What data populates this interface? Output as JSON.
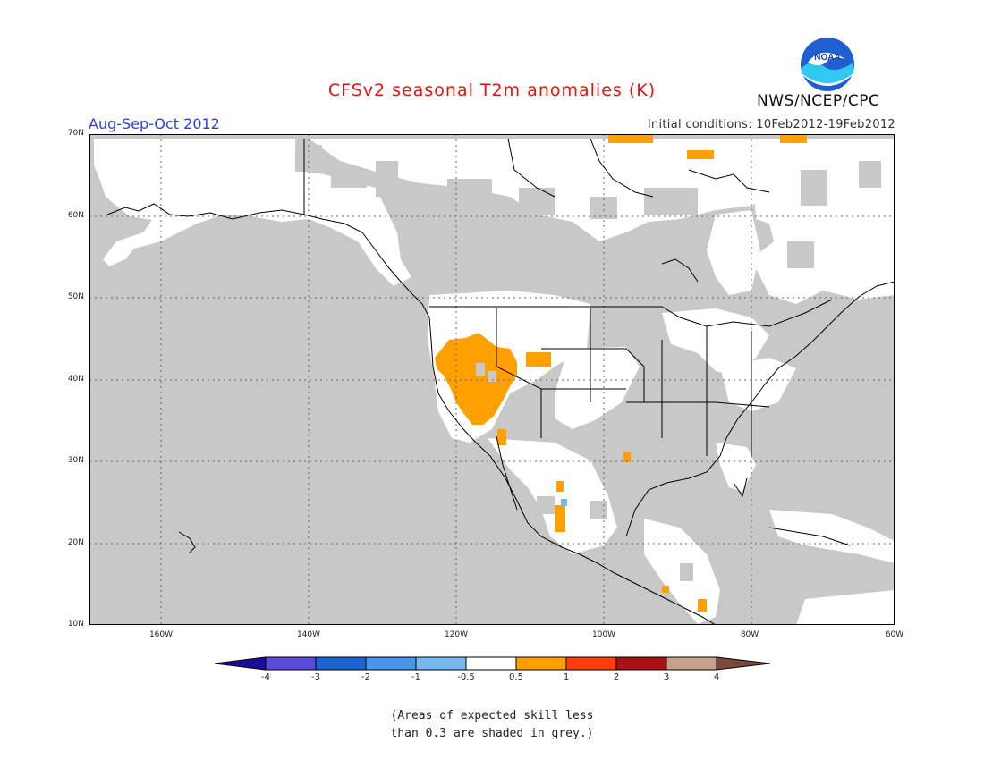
{
  "title": "CFSv2 seasonal T2m anomalies (K)",
  "agency": "NWS/NCEP/CPC",
  "logo_text": "NOAA",
  "season": "Aug-Sep-Oct 2012",
  "initial_conditions": "Initial conditions: 10Feb2012-19Feb2012",
  "map": {
    "lat_ticks": [
      "70N",
      "60N",
      "50N",
      "40N",
      "30N",
      "20N",
      "10N"
    ],
    "lon_ticks": [
      "160W",
      "140W",
      "120W",
      "100W",
      "80W",
      "60W"
    ],
    "colors": {
      "ocean_low_skill": "#c8c8c8",
      "land_skill": "#ffffff",
      "warm_anomaly": "#ff9f00",
      "cool_anomaly": "#78b8f0",
      "coastline": "#000000"
    }
  },
  "colorbar": {
    "labels": [
      "-4",
      "-3",
      "-2",
      "-1",
      "-0.5",
      "0.5",
      "1",
      "2",
      "3",
      "4"
    ],
    "colors": [
      "#1a0d9c",
      "#5a4ad8",
      "#1e64d0",
      "#4896ea",
      "#78b8f0",
      "#ffffff",
      "#ff9f00",
      "#ff3c0c",
      "#a81212",
      "#c8a08c",
      "#7a4a3a"
    ]
  },
  "note": {
    "line1": "(Areas of expected skill less",
    "line2": "than 0.3 are shaded in grey.)"
  }
}
